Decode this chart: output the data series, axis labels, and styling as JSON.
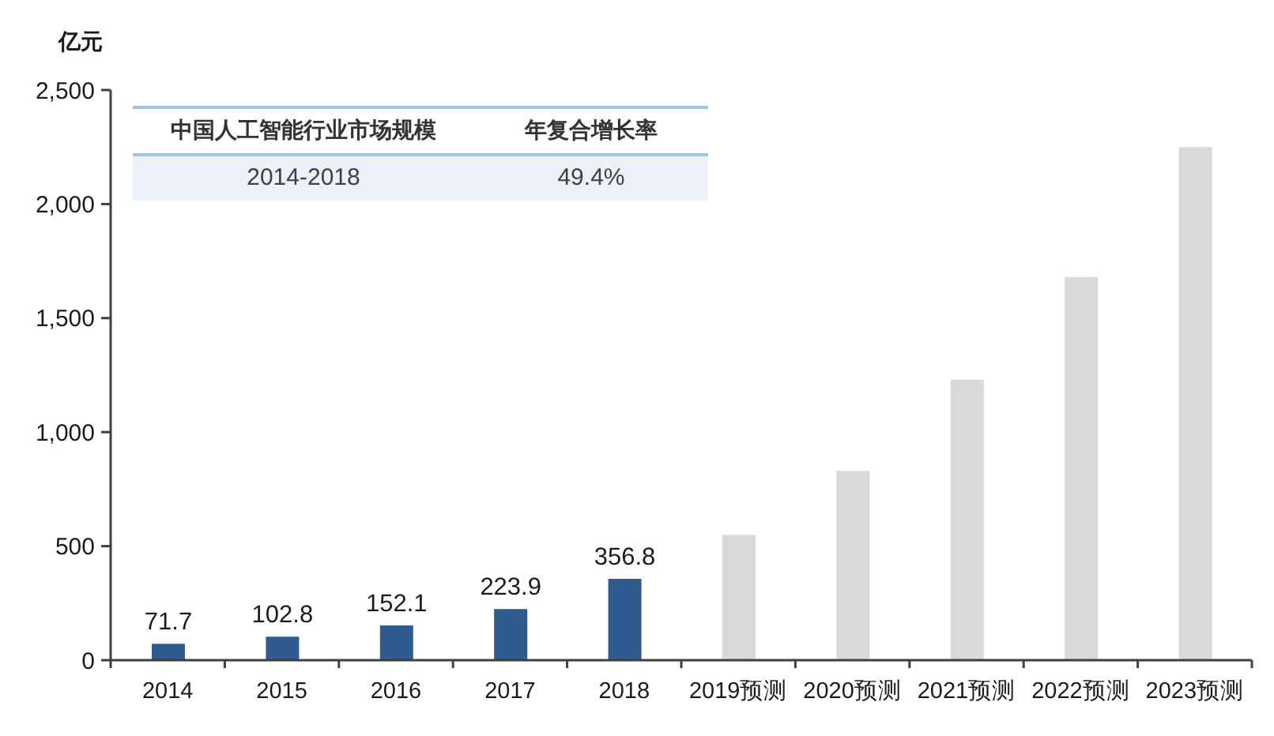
{
  "chart_data": {
    "type": "bar",
    "ylabel": "亿元",
    "categories": [
      "2014",
      "2015",
      "2016",
      "2017",
      "2018",
      "2019预测",
      "2020预测",
      "2021预测",
      "2022预测",
      "2023预测"
    ],
    "values": [
      71.7,
      102.8,
      152.1,
      223.9,
      356.8,
      550,
      830,
      1230,
      1680,
      2250
    ],
    "colors": [
      "#2f5b8f",
      "#2f5b8f",
      "#2f5b8f",
      "#2f5b8f",
      "#2f5b8f",
      "#d9d9d9",
      "#d9d9d9",
      "#d9d9d9",
      "#d9d9d9",
      "#d9d9d9"
    ],
    "value_labels": [
      "71.7",
      "102.8",
      "152.1",
      "223.9",
      "356.8",
      null,
      null,
      null,
      null,
      null
    ],
    "ylim": [
      0,
      2500
    ],
    "yticks": [
      0,
      500,
      {
        "value": 1000,
        "label": "1,000"
      },
      {
        "value": 1500,
        "label": "1,500"
      },
      {
        "value": 2000,
        "label": "2,000"
      },
      {
        "value": 2500,
        "label": "2,500"
      }
    ],
    "annotations": [
      "中国人工智能行业市场规模",
      "年复合增长率",
      "2014-2018",
      "49.4%"
    ]
  }
}
